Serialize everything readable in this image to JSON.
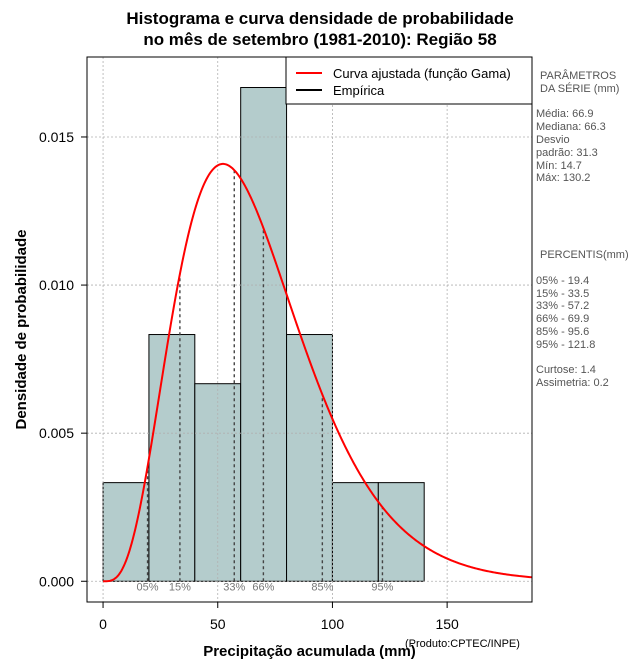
{
  "title": {
    "line1": "Histograma e curva densidade de probabilidade",
    "line2": "no mês de setembro (1981-2010): Região 58"
  },
  "credit": "(Produto:CPTEC/INPE)",
  "legend": {
    "fitted": "Curva ajustada (função Gama)",
    "empirical": "Empírica"
  },
  "colors": {
    "bar_fill": "#b4cccc",
    "curve": "#ff0000",
    "grid": "#b0b0b0",
    "percentile_text": "#777777"
  },
  "stats": {
    "header1": "PARÂMETROS",
    "header2": "DA SÉRIE (mm)",
    "media": "Média:  66.9",
    "mediana": "Mediana:  66.3",
    "desvio1": "Desvio",
    "desvio2": "padrão:  31.3",
    "min": "Mín:  14.7",
    "max": "Máx:  130.2",
    "perc_header": "PERCENTIS(mm)",
    "p05": "05% -  19.4",
    "p15": "15% -  33.5",
    "p33": "33% -  57.2",
    "p66": "66% -  69.9",
    "p85": "85% -  95.6",
    "p95": "95% -  121.8",
    "curtose": "Curtose:  1.4",
    "assimetria": "Assimetria:  0.2"
  },
  "chart_data": {
    "type": "bar",
    "title": "Histograma e curva densidade de probabilidade no mês de setembro (1981-2010): Região 58",
    "xlabel": "Precipitação acumulada (mm)",
    "ylabel": "Densidade de probabilidade",
    "xlim": [
      -7,
      187
    ],
    "ylim": [
      -0.0007,
      0.0177
    ],
    "xticks": [
      0,
      50,
      100,
      150
    ],
    "yticks": [
      0.0,
      0.005,
      0.01,
      0.015
    ],
    "ytick_labels": [
      "0.000",
      "0.005",
      "0.010",
      "0.015"
    ],
    "grid": true,
    "bins": [
      {
        "x0": 0,
        "x1": 20,
        "density": 0.00333
      },
      {
        "x0": 20,
        "x1": 40,
        "density": 0.00833
      },
      {
        "x0": 40,
        "x1": 60,
        "density": 0.00667
      },
      {
        "x0": 60,
        "x1": 80,
        "density": 0.01667
      },
      {
        "x0": 80,
        "x1": 100,
        "density": 0.00833
      },
      {
        "x0": 100,
        "x1": 120,
        "density": 0.00333
      },
      {
        "x0": 120,
        "x1": 140,
        "density": 0.00333
      }
    ],
    "gamma_fit": {
      "shape": 4.57,
      "scale": 14.64
    },
    "percentiles": [
      {
        "label": "05%",
        "value": 19.4
      },
      {
        "label": "15%",
        "value": 33.5
      },
      {
        "label": "33%",
        "value": 57.2
      },
      {
        "label": "66%",
        "value": 69.9
      },
      {
        "label": "85%",
        "value": 95.6
      },
      {
        "label": "95%",
        "value": 121.8
      }
    ]
  }
}
